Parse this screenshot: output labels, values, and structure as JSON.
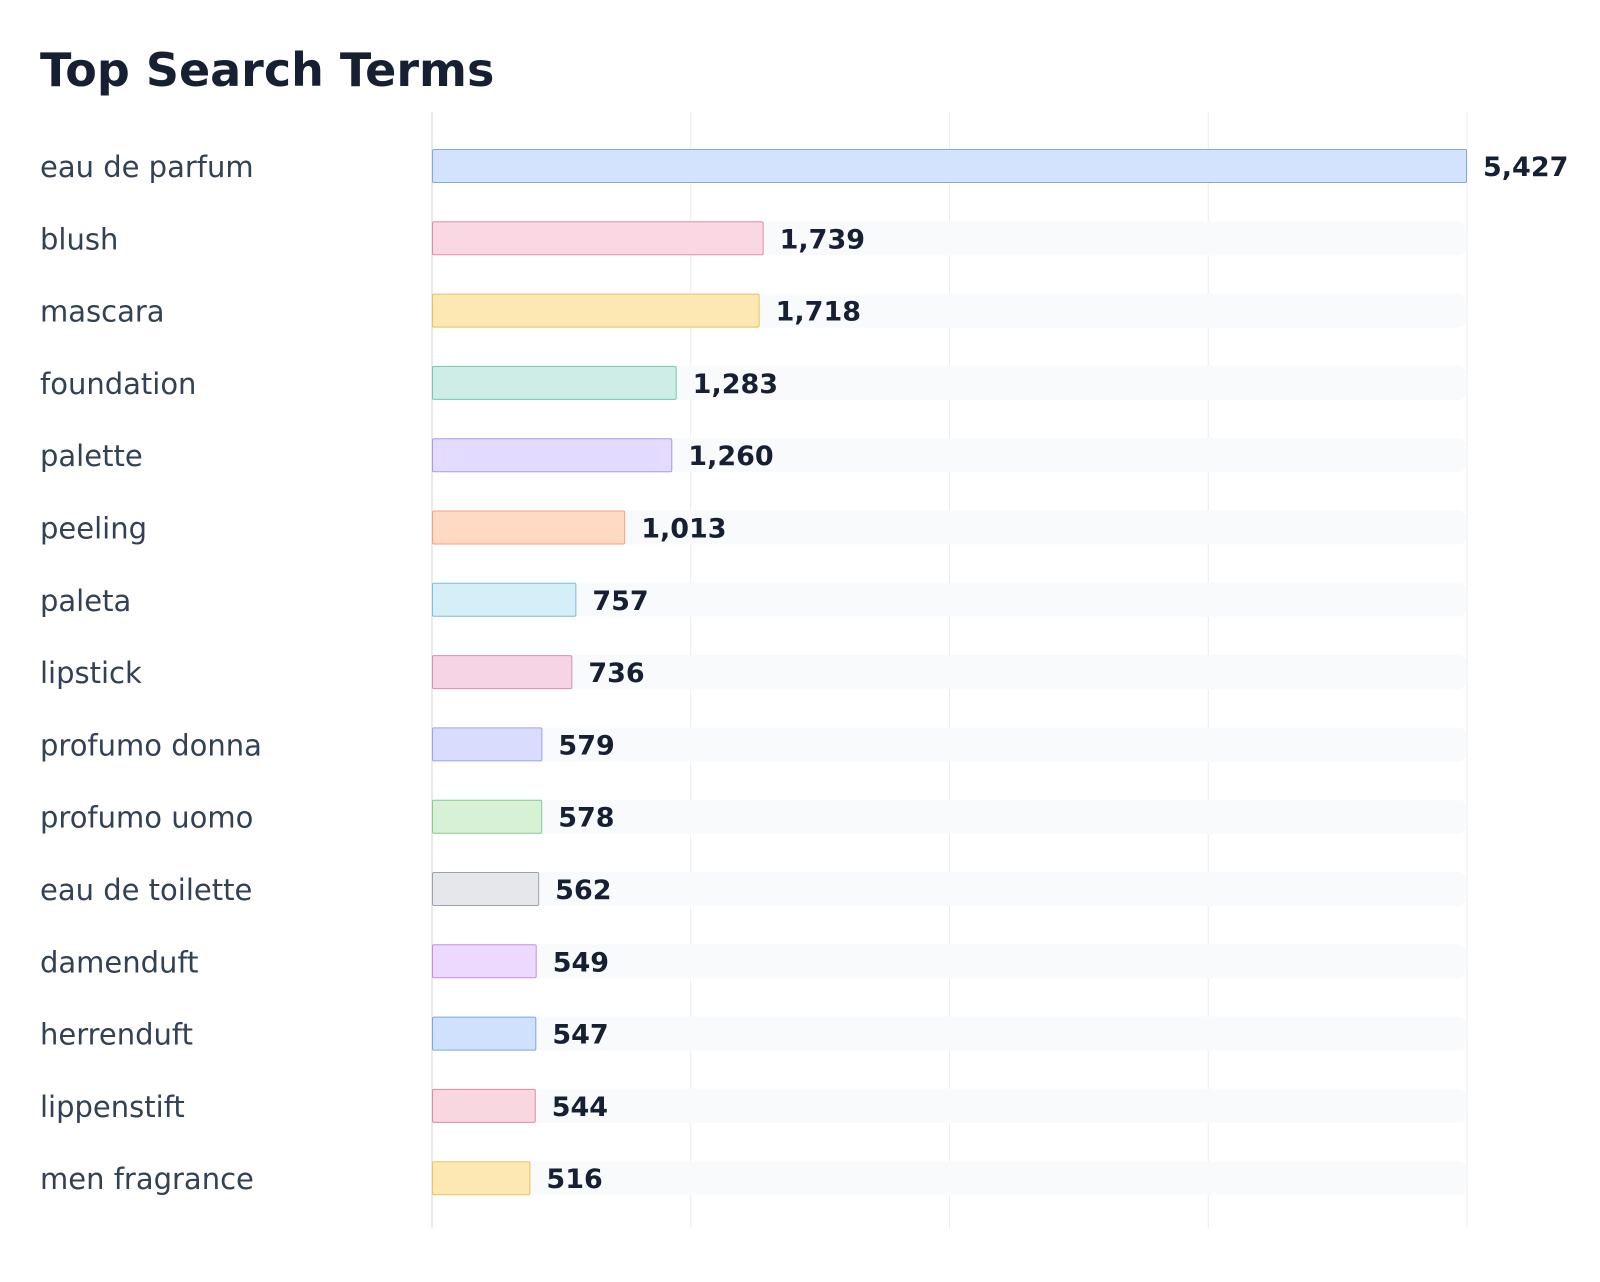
{
  "chart_data": {
    "type": "bar",
    "orientation": "horizontal",
    "title": "Top Search Terms",
    "xlabel": "",
    "ylabel": "",
    "xlim": [
      0,
      5427
    ],
    "grid": true,
    "legend": "none",
    "categories": [
      "eau de parfum",
      "blush",
      "mascara",
      "foundation",
      "palette",
      "peeling",
      "paleta",
      "lipstick",
      "profumo donna",
      "profumo uomo",
      "eau de toilette",
      "damenduft",
      "herrenduft",
      "lippenstift",
      "men fragrance"
    ],
    "values": [
      5427,
      1739,
      1718,
      1283,
      1260,
      1013,
      757,
      736,
      579,
      578,
      562,
      549,
      547,
      544,
      516
    ],
    "value_labels": [
      "5,427",
      "1,739",
      "1,718",
      "1,283",
      "1,260",
      "1,013",
      "757",
      "736",
      "579",
      "578",
      "562",
      "549",
      "547",
      "544",
      "516"
    ],
    "bar_colors": [
      {
        "fill": "#d3e3fd",
        "stroke": "#7ea8e8"
      },
      {
        "fill": "#f9d8e3",
        "stroke": "#e48aa8"
      },
      {
        "fill": "#fde7b3",
        "stroke": "#ecc15b"
      },
      {
        "fill": "#cfede7",
        "stroke": "#72c7b2"
      },
      {
        "fill": "#e4dcff",
        "stroke": "#aa98ec"
      },
      {
        "fill": "#fed9c4",
        "stroke": "#f1a37b"
      },
      {
        "fill": "#d6eef8",
        "stroke": "#79bfda"
      },
      {
        "fill": "#f6d4e6",
        "stroke": "#d98db4"
      },
      {
        "fill": "#dadcfd",
        "stroke": "#9ba3ee"
      },
      {
        "fill": "#d6f1d6",
        "stroke": "#84cc8d"
      },
      {
        "fill": "#e5e7eb",
        "stroke": "#9ca3af"
      },
      {
        "fill": "#ecd9fd",
        "stroke": "#c48ee8"
      },
      {
        "fill": "#d0e1fd",
        "stroke": "#7aa6e6"
      },
      {
        "fill": "#f9d7e1",
        "stroke": "#e38aa3"
      },
      {
        "fill": "#fde8b3",
        "stroke": "#ecc35c"
      }
    ],
    "track_color": "#f8fafc",
    "grid_color": "#ececec"
  }
}
